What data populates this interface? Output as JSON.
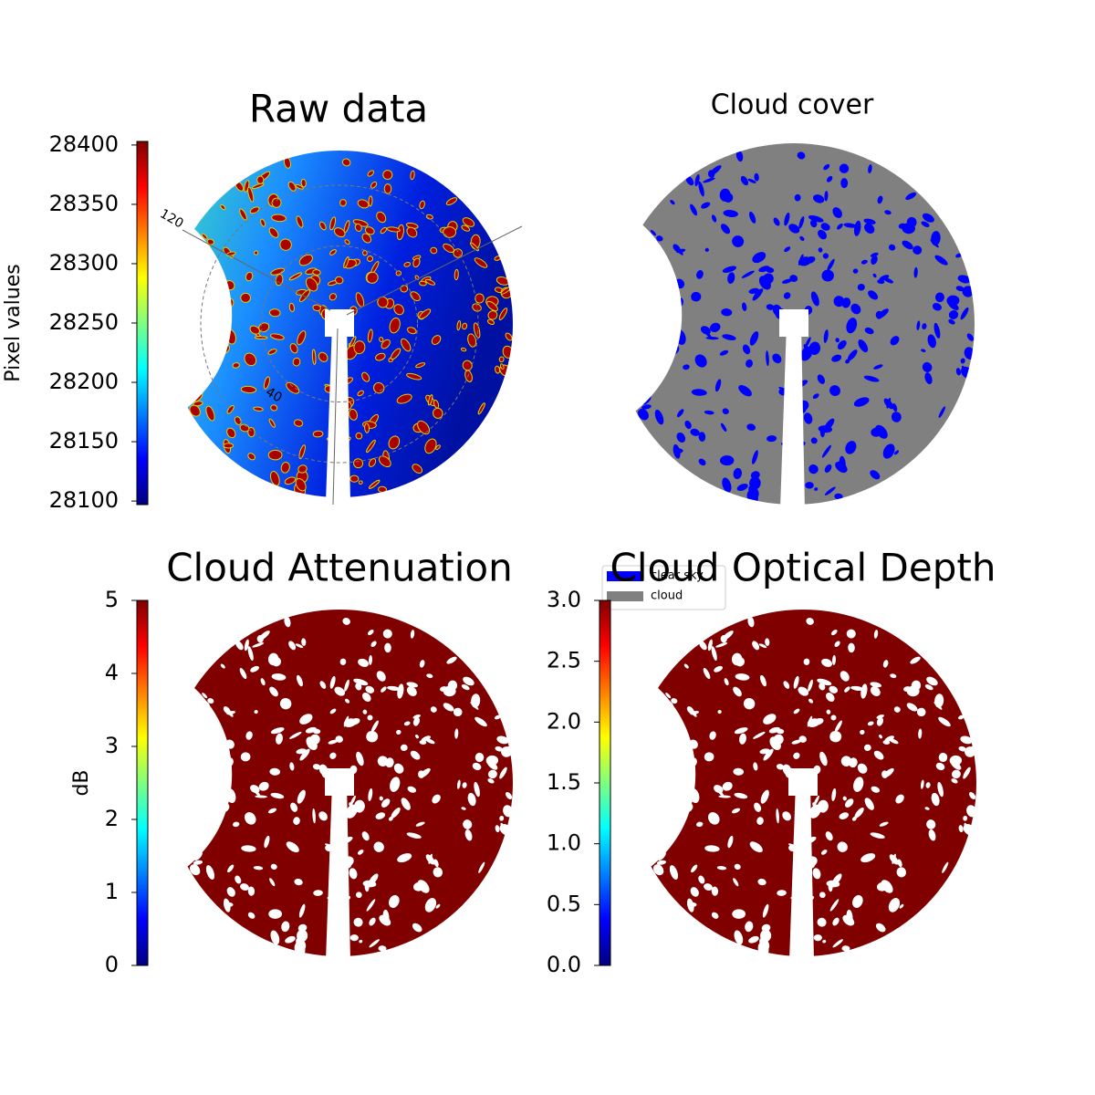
{
  "chart_data": [
    {
      "type": "image",
      "title": "Raw data",
      "colorbar_label": "Pixel values",
      "ylim": [
        28097,
        28403
      ],
      "yticks": [
        28100,
        28150,
        28200,
        28250,
        28300,
        28350,
        28400
      ],
      "colormap": [
        "#00007f",
        "#0000ff",
        "#007fff",
        "#00ffff",
        "#7fff7f",
        "#ffff00",
        "#ff7f00",
        "#ff0000",
        "#7f0000"
      ],
      "annotations": [
        "120",
        "40"
      ]
    },
    {
      "type": "image",
      "title": "Cloud cover",
      "legend": [
        {
          "name": "clear sky",
          "color": "#0000ff"
        },
        {
          "name": "cloud",
          "color": "#808080"
        }
      ]
    },
    {
      "type": "image",
      "title": "Cloud Attenuation",
      "colorbar_label": "dB",
      "ylim": [
        0,
        5
      ],
      "yticks": [
        0,
        1,
        2,
        3,
        4,
        5
      ],
      "colormap": [
        "#00007f",
        "#0000ff",
        "#007fff",
        "#00ffff",
        "#7fff7f",
        "#ffff00",
        "#ff7f00",
        "#ff0000",
        "#7f0000"
      ]
    },
    {
      "type": "image",
      "title": "Cloud Optical Depth",
      "ylim": [
        0,
        3
      ],
      "yticks": [
        {
          "value": 0,
          "label": "0.0"
        },
        0.5,
        {
          "value": 1,
          "label": "1.0"
        },
        1.5,
        {
          "value": 2,
          "label": "2.0"
        },
        2.5,
        {
          "value": 3,
          "label": "3.0"
        }
      ],
      "colormap": [
        "#00007f",
        "#0000ff",
        "#007fff",
        "#00ffff",
        "#7fff7f",
        "#ffff00",
        "#ff7f00",
        "#ff0000",
        "#7f0000"
      ]
    }
  ]
}
